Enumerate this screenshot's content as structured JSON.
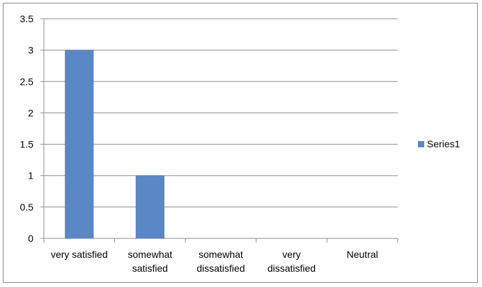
{
  "chart_data": {
    "type": "bar",
    "categories": [
      [
        "very satisfied"
      ],
      [
        "somewhat",
        "satisfied"
      ],
      [
        "somewhat",
        "dissatisfied"
      ],
      [
        "very",
        "dissatisfied"
      ],
      [
        "Neutral"
      ]
    ],
    "series": [
      {
        "name": "Series1",
        "values": [
          3,
          1,
          0,
          0,
          0
        ]
      }
    ],
    "title": "",
    "xlabel": "",
    "ylabel": "",
    "ylim": [
      0,
      3.5
    ],
    "yticks": [
      "0",
      "0.5",
      "1",
      "1.5",
      "2",
      "2.5",
      "3",
      "3.5"
    ],
    "grid": true,
    "legend_position": "right",
    "colors": {
      "bar": "#5b87c5",
      "bar_edge": "#4a75b0",
      "grid": "#8c8c8c",
      "axis": "#8c8c8c"
    }
  }
}
